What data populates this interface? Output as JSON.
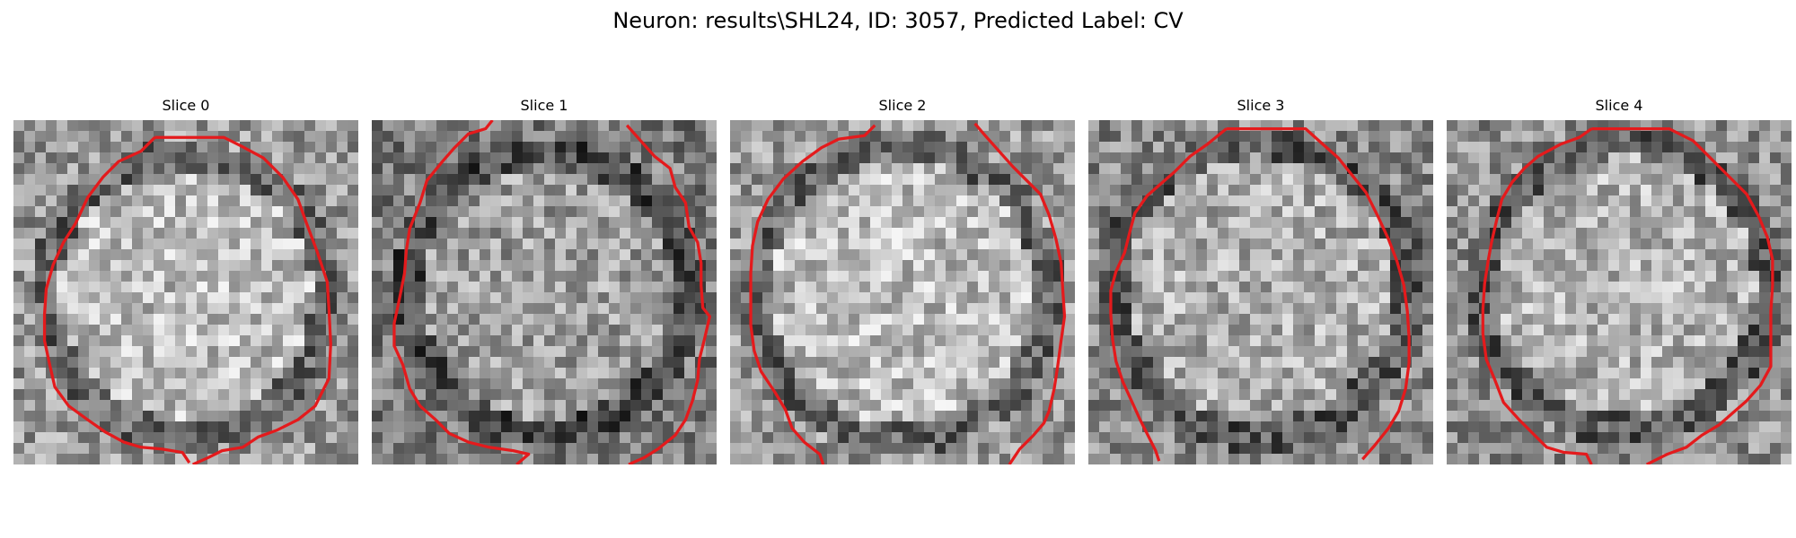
{
  "figure": {
    "title": "Neuron: results\\SHL24, ID: 3057, Predicted Label: CV"
  },
  "contour_color": "#e41a1c",
  "panels": [
    {
      "title": "Slice 0",
      "contour": [
        [
          8.2,
          1
        ],
        [
          12.2,
          1
        ],
        [
          13.2,
          1.5
        ],
        [
          14.5,
          2.2
        ],
        [
          15.6,
          3.3
        ],
        [
          16.5,
          4.6
        ],
        [
          17,
          6
        ],
        [
          17.6,
          7.6
        ],
        [
          18.2,
          9.4
        ],
        [
          18.3,
          11
        ],
        [
          18.4,
          13
        ],
        [
          18.3,
          15
        ],
        [
          17.5,
          16.6
        ],
        [
          16.5,
          17.4
        ],
        [
          15.3,
          18
        ],
        [
          14.2,
          18.4
        ],
        [
          13.3,
          19
        ],
        [
          12.1,
          19.2
        ],
        [
          11.3,
          19.6
        ],
        [
          10.4,
          20
        ]
      ],
      "contour2": [
        [
          10.2,
          19.9
        ],
        [
          9.8,
          19.3
        ],
        [
          8.6,
          19.1
        ],
        [
          7.4,
          19
        ],
        [
          6.4,
          18.7
        ],
        [
          5.3,
          18.1
        ],
        [
          4.3,
          17.4
        ],
        [
          3.2,
          16.6
        ],
        [
          2.4,
          15.5
        ],
        [
          2.1,
          14.2
        ],
        [
          1.8,
          12.8
        ],
        [
          1.8,
          11.3
        ],
        [
          1.9,
          9.8
        ],
        [
          2.3,
          8.4
        ],
        [
          2.9,
          7.1
        ],
        [
          3.6,
          6
        ],
        [
          4.3,
          4.5
        ],
        [
          5.2,
          3.3
        ],
        [
          6.1,
          2.4
        ],
        [
          7.4,
          1.8
        ],
        [
          8.2,
          1
        ]
      ]
    },
    {
      "title": "Slice 1",
      "contour": [
        [
          7,
          0
        ],
        [
          6.6,
          0.5
        ],
        [
          5.6,
          0.8
        ],
        [
          4.8,
          1.6
        ],
        [
          4.1,
          2.4
        ],
        [
          3.2,
          3.5
        ],
        [
          2.8,
          4.8
        ],
        [
          2.2,
          6.3
        ],
        [
          2,
          7.6
        ],
        [
          1.9,
          8.9
        ],
        [
          1.6,
          10.4
        ],
        [
          1.3,
          11.8
        ],
        [
          1.3,
          13.1
        ],
        [
          1.8,
          14.2
        ],
        [
          2.2,
          15.6
        ],
        [
          2.8,
          16.6
        ],
        [
          3.7,
          17.4
        ],
        [
          4.5,
          18.2
        ],
        [
          5.6,
          18.7
        ],
        [
          6.8,
          19
        ],
        [
          8.2,
          19.2
        ],
        [
          9.1,
          19.4
        ],
        [
          8.4,
          20
        ]
      ],
      "contour2": [
        [
          14.8,
          0.3
        ],
        [
          15.6,
          1.2
        ],
        [
          16.4,
          2.1
        ],
        [
          17.3,
          2.8
        ],
        [
          17.6,
          3.9
        ],
        [
          18.2,
          4.8
        ],
        [
          18.4,
          6.2
        ],
        [
          18.9,
          7.1
        ],
        [
          19.1,
          8.3
        ],
        [
          19.1,
          9.6
        ],
        [
          19.2,
          10.9
        ],
        [
          19.6,
          11.4
        ],
        [
          19.3,
          12.7
        ],
        [
          19,
          13.9
        ],
        [
          18.9,
          15.1
        ],
        [
          18.6,
          16.3
        ],
        [
          18.2,
          17.4
        ],
        [
          17.6,
          18.3
        ],
        [
          16.6,
          19.1
        ],
        [
          15.8,
          19.6
        ],
        [
          14.9,
          20
        ]
      ]
    },
    {
      "title": "Slice 2",
      "contour": [
        [
          8.4,
          0.3
        ],
        [
          7.8,
          0.9
        ],
        [
          6.3,
          1.1
        ],
        [
          5.3,
          1.6
        ],
        [
          4.2,
          2.4
        ],
        [
          3.1,
          3.4
        ],
        [
          2.2,
          4.6
        ],
        [
          1.6,
          5.9
        ],
        [
          1.3,
          7.3
        ],
        [
          1.2,
          8.9
        ],
        [
          1.2,
          10.4
        ],
        [
          1.2,
          11.9
        ],
        [
          1.4,
          13.4
        ],
        [
          1.8,
          14.6
        ],
        [
          2.6,
          15.8
        ],
        [
          3.2,
          16.8
        ],
        [
          3.6,
          17.9
        ],
        [
          4.3,
          18.7
        ],
        [
          5.2,
          19.4
        ],
        [
          5.4,
          20
        ]
      ],
      "contour2": [
        [
          14.2,
          0.2
        ],
        [
          14.8,
          0.9
        ],
        [
          15.6,
          1.8
        ],
        [
          16.4,
          2.7
        ],
        [
          17.2,
          3.5
        ],
        [
          18,
          4.3
        ],
        [
          18.5,
          5.5
        ],
        [
          18.9,
          6.9
        ],
        [
          19.2,
          8.3
        ],
        [
          19.3,
          9.9
        ],
        [
          19.4,
          11.4
        ],
        [
          19.2,
          12.8
        ],
        [
          19,
          14.3
        ],
        [
          18.8,
          15.6
        ],
        [
          18.5,
          16.9
        ],
        [
          18.2,
          17.6
        ],
        [
          17.6,
          18.3
        ],
        [
          16.8,
          19.1
        ],
        [
          16.2,
          20
        ]
      ]
    },
    {
      "title": "Slice 3",
      "contour": [
        [
          8,
          0.5
        ],
        [
          12.6,
          0.5
        ],
        [
          13.6,
          1.4
        ],
        [
          14.5,
          2.2
        ],
        [
          15.3,
          3.2
        ],
        [
          16.1,
          4.2
        ],
        [
          16.8,
          5.6
        ],
        [
          17.4,
          6.9
        ],
        [
          17.9,
          8.2
        ],
        [
          18.3,
          9.6
        ],
        [
          18.5,
          11.1
        ],
        [
          18.6,
          12.6
        ],
        [
          18.6,
          14.1
        ],
        [
          18.4,
          15.6
        ],
        [
          18,
          16.9
        ],
        [
          17.4,
          17.9
        ],
        [
          16.6,
          18.9
        ],
        [
          15.9,
          19.7
        ]
      ],
      "contour2": [
        [
          8,
          0.5
        ],
        [
          6.9,
          1.4
        ],
        [
          5.9,
          2.1
        ],
        [
          5,
          3
        ],
        [
          4.2,
          3.7
        ],
        [
          3.4,
          4.4
        ],
        [
          2.7,
          5.4
        ],
        [
          2.4,
          6.5
        ],
        [
          2.1,
          7.7
        ],
        [
          1.6,
          8.8
        ],
        [
          1.3,
          9.9
        ],
        [
          1.3,
          11.3
        ],
        [
          1.4,
          12.7
        ],
        [
          1.6,
          14
        ],
        [
          2,
          15.2
        ],
        [
          2.5,
          16.3
        ],
        [
          3,
          17.4
        ],
        [
          3.5,
          18.4
        ],
        [
          3.9,
          19.2
        ],
        [
          4.1,
          19.8
        ]
      ]
    },
    {
      "title": "Slice 4",
      "contour": [
        [
          8.4,
          0.5
        ],
        [
          9.2,
          0.5
        ],
        [
          12.9,
          0.5
        ],
        [
          14.3,
          1.2
        ],
        [
          15.4,
          2.3
        ],
        [
          16.4,
          3.3
        ],
        [
          17.4,
          4.3
        ],
        [
          18.1,
          5.6
        ],
        [
          18.6,
          6.8
        ],
        [
          18.9,
          8.1
        ],
        [
          18.9,
          9.6
        ],
        [
          18.8,
          11.1
        ],
        [
          18.8,
          12.6
        ],
        [
          18.8,
          14.3
        ],
        [
          18.2,
          15.4
        ],
        [
          17.4,
          16.3
        ],
        [
          16.6,
          17
        ],
        [
          15.8,
          17.7
        ],
        [
          14.8,
          18.3
        ],
        [
          13.9,
          19
        ],
        [
          12.8,
          19.4
        ],
        [
          12.4,
          19.6
        ],
        [
          11.6,
          20
        ]
      ],
      "contour2": [
        [
          8.4,
          0.5
        ],
        [
          7.7,
          1
        ],
        [
          6.6,
          1.4
        ],
        [
          5.3,
          2.1
        ],
        [
          4.5,
          2.8
        ],
        [
          3.8,
          3.6
        ],
        [
          3.2,
          4.6
        ],
        [
          2.9,
          5.8
        ],
        [
          2.6,
          7.1
        ],
        [
          2.4,
          8.2
        ],
        [
          2.2,
          9.5
        ],
        [
          2.1,
          11
        ],
        [
          2.1,
          12.4
        ],
        [
          2.3,
          13.9
        ],
        [
          2.8,
          15.1
        ],
        [
          3.3,
          16.4
        ],
        [
          4.2,
          17.4
        ],
        [
          5.1,
          18.3
        ],
        [
          5.8,
          19
        ],
        [
          6.8,
          19.3
        ],
        [
          8.1,
          19.4
        ],
        [
          8.4,
          20
        ]
      ]
    }
  ]
}
